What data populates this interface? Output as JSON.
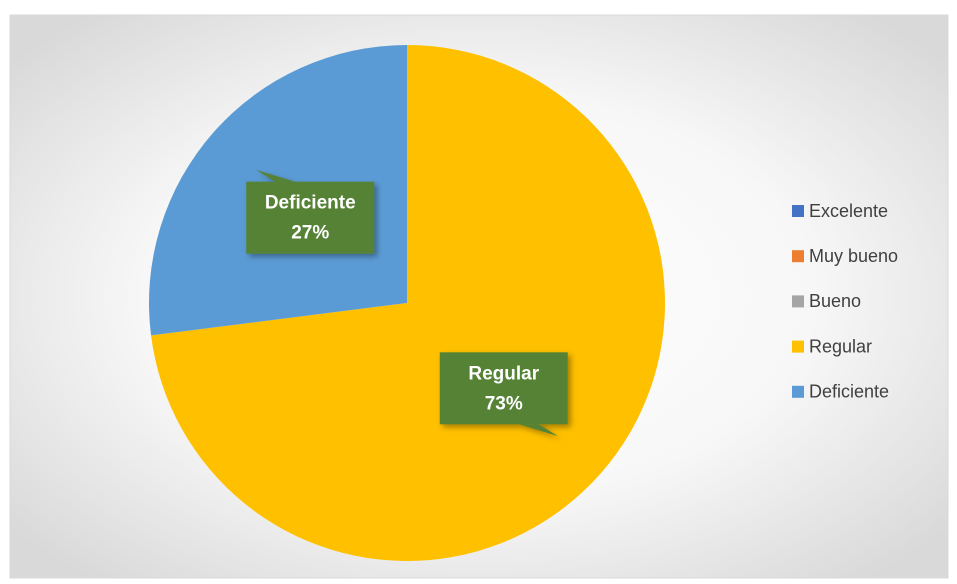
{
  "chart_data": {
    "type": "pie",
    "categories": [
      "Excelente",
      "Muy bueno",
      "Bueno",
      "Regular",
      "Deficiente"
    ],
    "values": [
      0,
      0,
      0,
      73,
      27
    ],
    "value_labels": [
      null,
      null,
      null,
      "73%",
      "27%"
    ],
    "colors": [
      "#4472c4",
      "#ed7d31",
      "#a5a5a5",
      "#ffc000",
      "#5b9bd5"
    ],
    "legend": "right"
  }
}
